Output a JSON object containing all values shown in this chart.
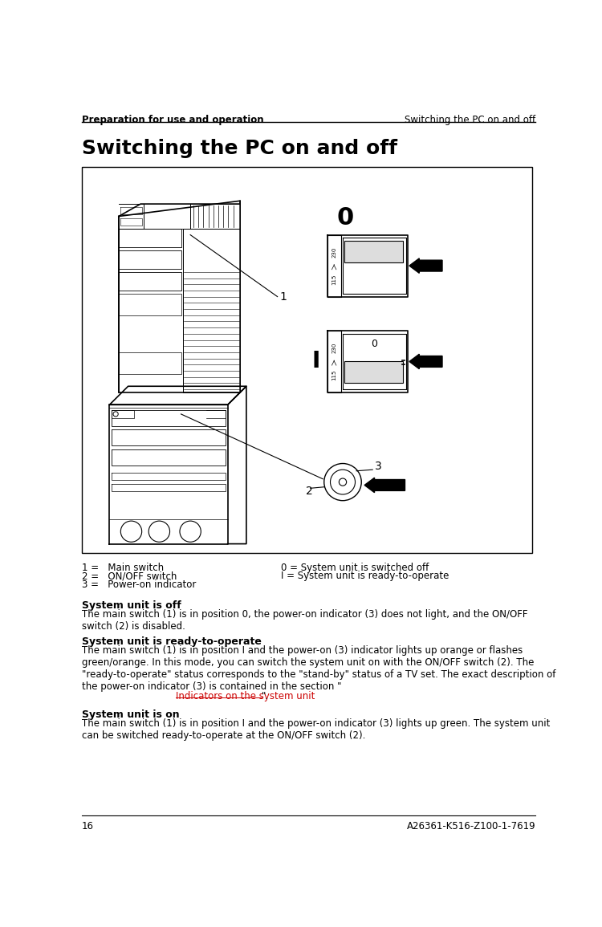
{
  "header_left": "Preparation for use and operation",
  "header_right": "Switching the PC on and off",
  "page_title": "Switching the PC on and off",
  "page_number": "16",
  "footer_right": "A26361-K516-Z100-1-7619",
  "legend_lines": [
    "1 =   Main switch",
    "2 =   ON/OFF switch",
    "3 =   Power-on indicator"
  ],
  "legend_right_lines": [
    "0 = System unit is switched off",
    "I = System unit is ready-to-operate"
  ],
  "section1_heading": "System unit is off",
  "section1_text": "The main switch (1) is in position 0, the power-on indicator (3) does not light, and the ON/OFF\nswitch (2) is disabled.",
  "section2_heading": "System unit is ready-to-operate",
  "section2_text_part1": "The main switch (1) is in position I and the power-on (3) indicator lights up orange or flashes\ngreen/orange. In this mode, you can switch the system unit on with the ON/OFF switch (2). The\n\"ready-to-operate\" status corresponds to the \"stand-by\" status of a TV set. The exact description of\nthe power-on indicator (3) is contained in the section \"",
  "section2_link": "Indicators on the system unit",
  "section2_text_part3": "\".",
  "section3_heading": "System unit is on",
  "section3_text": "The main switch (1) is in position I and the power-on indicator (3) lights up green. The system unit\ncan be switched ready-to-operate at the ON/OFF switch (2).",
  "bg_color": "#ffffff",
  "text_color": "#000000",
  "link_color": "#cc0000",
  "header_font_size": 8.5,
  "title_font_size": 18,
  "body_font_size": 8.5,
  "heading_font_size": 9,
  "legend_font_size": 8.5
}
